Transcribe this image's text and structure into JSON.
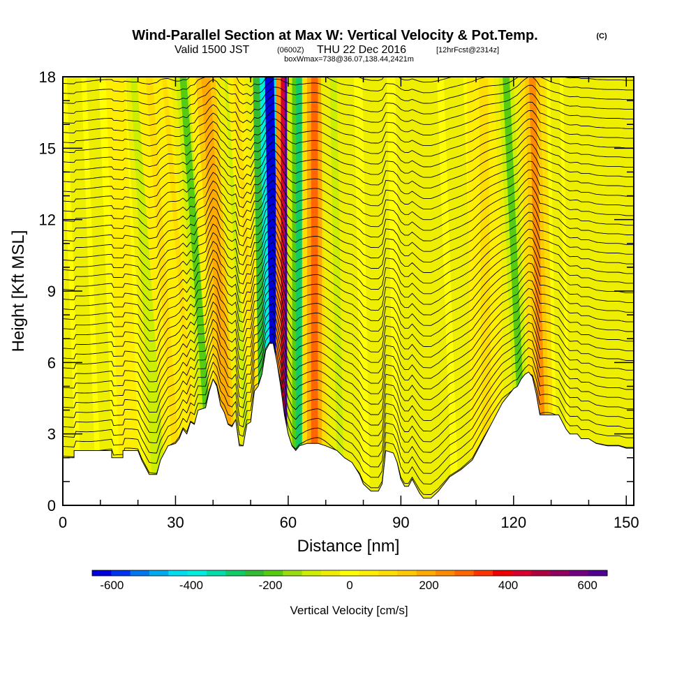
{
  "chart_data": {
    "type": "heatmap",
    "title": "Wind-Parallel Section at Max W: Vertical Velocity & Pot.Temp.",
    "title_mark": "(C)",
    "subtitle_a": "Valid 1500 JST",
    "subtitle_b": "(0600Z)",
    "subtitle_c": "THU 22 Dec 2016",
    "subtitle_d": "[12hrFcst@2314z]",
    "subtitle2": "boxWmax=738@36.07,138.44,2421m",
    "xlabel": "Distance [nm]",
    "ylabel": "Height [Kft MSL]",
    "xlim": [
      0,
      152
    ],
    "ylim": [
      0,
      18
    ],
    "x_ticks": [
      "0",
      "30",
      "60",
      "90",
      "120",
      "150"
    ],
    "x_tick_values": [
      0,
      30,
      60,
      90,
      120,
      150
    ],
    "y_ticks": [
      "0",
      "3",
      "6",
      "9",
      "12",
      "15",
      "18"
    ],
    "y_tick_values": [
      0,
      3,
      6,
      9,
      12,
      15,
      18
    ],
    "colorbar": {
      "label": "Vertical Velocity [cm/s]",
      "range": [
        -650,
        650
      ],
      "tick_labels": [
        "-600",
        "-400",
        "-200",
        "0",
        "200",
        "400",
        "600"
      ],
      "tick_values": [
        -600,
        -400,
        -200,
        0,
        200,
        400,
        600
      ],
      "colors": [
        "#0000d8",
        "#0033ee",
        "#0077ee",
        "#00aaee",
        "#00ddee",
        "#00eedd",
        "#00ddaa",
        "#11cc66",
        "#33bb33",
        "#55cc11",
        "#99dd11",
        "#ccee00",
        "#eeee00",
        "#ffff00",
        "#ffee00",
        "#ffdd00",
        "#ffc800",
        "#ffaa00",
        "#ff8c00",
        "#ff6600",
        "#ff3300",
        "#ee0000",
        "#d80030",
        "#b00040",
        "#900060",
        "#700080",
        "#500090"
      ]
    },
    "terrain": [
      [
        0,
        2.0
      ],
      [
        3,
        2.0
      ],
      [
        3,
        2.3
      ],
      [
        13,
        2.3
      ],
      [
        13,
        2.0
      ],
      [
        16,
        2.0
      ],
      [
        16,
        2.3
      ],
      [
        20,
        2.3
      ],
      [
        21,
        1.9
      ],
      [
        22,
        1.6
      ],
      [
        23,
        1.3
      ],
      [
        25,
        1.3
      ],
      [
        26,
        1.9
      ],
      [
        27,
        2.2
      ],
      [
        28,
        2.5
      ],
      [
        30,
        2.6
      ],
      [
        31,
        2.8
      ],
      [
        32,
        3.2
      ],
      [
        33,
        3.0
      ],
      [
        34,
        3.5
      ],
      [
        35,
        3.4
      ],
      [
        36,
        4.0
      ],
      [
        38,
        4.1
      ],
      [
        39,
        4.8
      ],
      [
        40,
        5.3
      ],
      [
        41,
        5.0
      ],
      [
        42,
        4.2
      ],
      [
        43,
        3.9
      ],
      [
        44,
        3.4
      ],
      [
        45,
        3.3
      ],
      [
        46,
        3.6
      ],
      [
        47,
        2.5
      ],
      [
        48,
        2.5
      ],
      [
        49,
        3.4
      ],
      [
        50,
        3.5
      ],
      [
        51,
        4.8
      ],
      [
        52,
        5.0
      ],
      [
        53,
        5.5
      ],
      [
        54,
        6.5
      ],
      [
        55,
        6.8
      ],
      [
        56,
        6.8
      ],
      [
        57,
        6.0
      ],
      [
        58,
        5.0
      ],
      [
        59,
        3.8
      ],
      [
        60,
        3.0
      ],
      [
        61,
        2.5
      ],
      [
        62,
        2.3
      ],
      [
        63,
        2.5
      ],
      [
        65,
        2.6
      ],
      [
        68,
        2.6
      ],
      [
        70,
        2.5
      ],
      [
        73,
        2.3
      ],
      [
        75,
        2.0
      ],
      [
        77,
        1.8
      ],
      [
        79,
        1.3
      ],
      [
        80,
        0.9
      ],
      [
        82,
        0.6
      ],
      [
        84,
        0.6
      ],
      [
        85,
        0.9
      ],
      [
        86,
        2.3
      ],
      [
        88,
        2.2
      ],
      [
        89,
        1.8
      ],
      [
        90,
        1.1
      ],
      [
        91,
        0.8
      ],
      [
        92,
        0.8
      ],
      [
        93,
        1.1
      ],
      [
        94,
        0.8
      ],
      [
        95,
        0.5
      ],
      [
        96,
        0.3
      ],
      [
        98,
        0.3
      ],
      [
        100,
        0.6
      ],
      [
        103,
        1.2
      ],
      [
        106,
        1.5
      ],
      [
        109,
        1.9
      ],
      [
        111,
        2.5
      ],
      [
        113,
        3.1
      ],
      [
        115,
        3.7
      ],
      [
        117,
        4.3
      ],
      [
        119,
        4.7
      ],
      [
        120,
        4.9
      ],
      [
        121,
        5.0
      ],
      [
        122,
        5.3
      ],
      [
        123,
        5.5
      ],
      [
        124,
        5.6
      ],
      [
        125,
        5.4
      ],
      [
        126,
        4.7
      ],
      [
        127,
        3.8
      ],
      [
        128,
        3.8
      ],
      [
        132,
        3.8
      ],
      [
        133,
        3.5
      ],
      [
        134,
        3.2
      ],
      [
        135,
        3.0
      ],
      [
        137,
        3.0
      ],
      [
        138,
        2.8
      ],
      [
        140,
        2.8
      ],
      [
        142,
        2.6
      ],
      [
        145,
        2.5
      ],
      [
        148,
        2.5
      ],
      [
        150,
        2.4
      ],
      [
        152,
        2.4
      ]
    ],
    "updraft_bands": [
      {
        "x_base": 7,
        "x_top": 3,
        "w": -50,
        "width": 3
      },
      {
        "x_base": 18,
        "x_top": 14,
        "w": 50,
        "width": 4
      },
      {
        "x_base": 26,
        "x_top": 20,
        "w": -120,
        "width": 3
      },
      {
        "x_base": 31,
        "x_top": 23,
        "w": 100,
        "width": 3
      },
      {
        "x_base": 36,
        "x_top": 27,
        "w": 80,
        "width": 2
      },
      {
        "x_base": 40,
        "x_top": 32,
        "w": -180,
        "width": 3
      },
      {
        "x_base": 45,
        "x_top": 38,
        "w": 200,
        "width": 4
      },
      {
        "x_base": 50,
        "x_top": 44,
        "w": -80,
        "width": 3
      },
      {
        "x_base": 53,
        "x_top": 46,
        "w": 100,
        "width": 2
      },
      {
        "x_base": 57,
        "x_top": 55,
        "w": -620,
        "width": 4
      },
      {
        "x_base": 60,
        "x_top": 60,
        "w": 640,
        "width": 3
      },
      {
        "x_base": 63,
        "x_top": 63,
        "w": -300,
        "width": 3
      },
      {
        "x_base": 67,
        "x_top": 67,
        "w": 300,
        "width": 3
      },
      {
        "x_base": 74,
        "x_top": 72,
        "w": -100,
        "width": 3
      },
      {
        "x_base": 85,
        "x_top": 83,
        "w": -60,
        "width": 5
      },
      {
        "x_base": 100,
        "x_top": 95,
        "w": -70,
        "width": 5
      },
      {
        "x_base": 108,
        "x_top": 104,
        "w": -40,
        "width": 4
      },
      {
        "x_base": 113,
        "x_top": 112,
        "w": 80,
        "width": 4
      },
      {
        "x_base": 123,
        "x_top": 118,
        "w": -180,
        "width": 3
      },
      {
        "x_base": 128,
        "x_top": 125,
        "w": 220,
        "width": 3
      },
      {
        "x_base": 133,
        "x_top": 131,
        "w": -60,
        "width": 2
      }
    ],
    "isentropes": {
      "count": 46,
      "surface_k": 0,
      "spacing_kft": 0.45
    }
  }
}
